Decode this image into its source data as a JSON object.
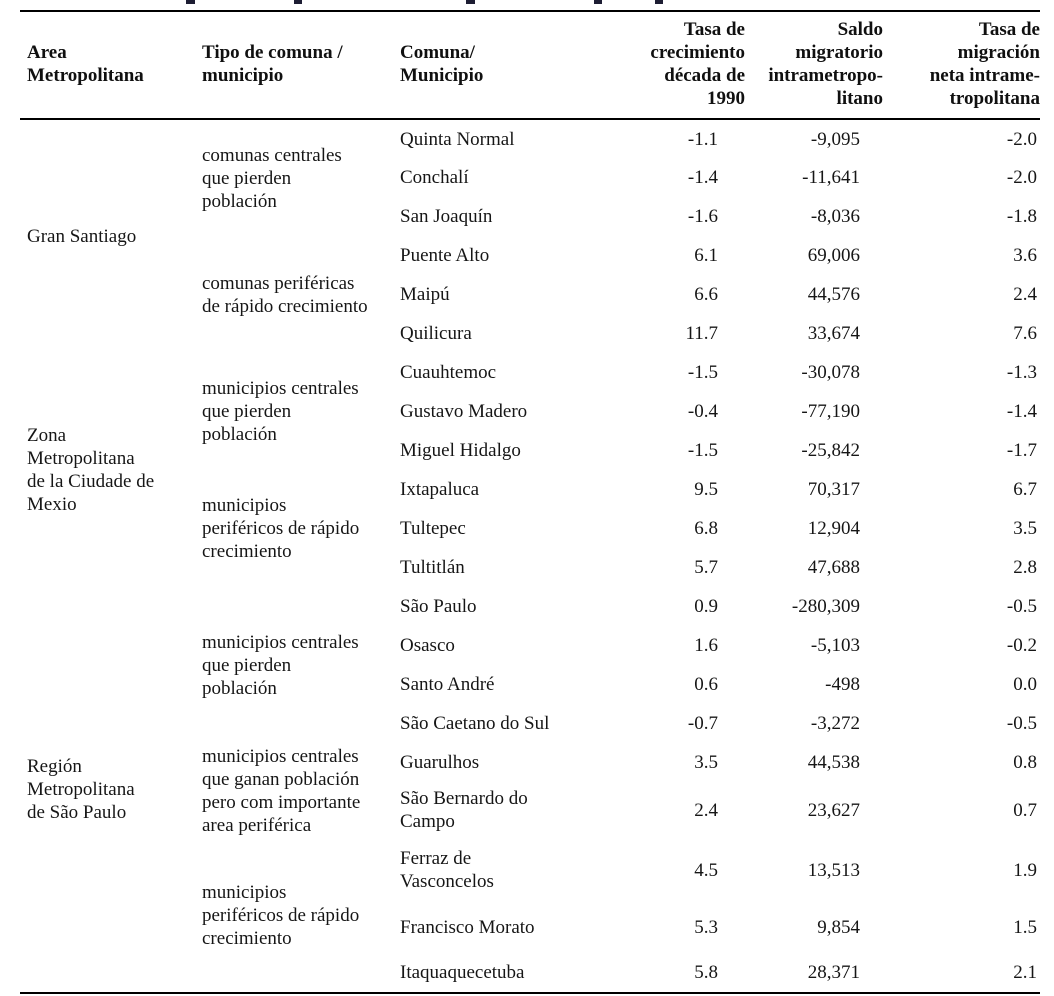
{
  "table": {
    "headers": {
      "area": "Area\nMetropolitana",
      "tipo": "Tipo de comuna /\nmunicipio",
      "comuna": "Comuna/\nMunicipio",
      "tasa": "Tasa de\ncrecimiento\ndécada de\n1990",
      "saldo": "Saldo\nmigratorio\nintrametropo-\nlitano",
      "neta": "Tasa de\nmigración\nneta intrame-\ntropolitana"
    },
    "areas": [
      {
        "label": "Gran Santiago"
      },
      {
        "label": "Zona\nMetropolitana\nde la Ciudade de\nMexio"
      },
      {
        "label": "Región\nMetropolitana\nde São Paulo"
      }
    ],
    "tipos": [
      {
        "label": "comunas centrales\nque pierden\npoblación"
      },
      {
        "label": "comunas periféricas\nde rápido crecimiento"
      },
      {
        "label": "municipios centrales\nque pierden\npoblación"
      },
      {
        "label": "municipios\nperiféricos de rápido\ncrecimiento"
      },
      {
        "label": "municipios centrales\nque pierden\npoblación"
      },
      {
        "label": "municipios centrales\nque ganan población\npero com importante\narea periférica"
      },
      {
        "label": "municipios\nperiféricos de rápido\ncrecimiento"
      }
    ],
    "rows": [
      {
        "comuna": "Quinta Normal",
        "tasa": "-1.1",
        "saldo": "-9,095",
        "neta": "-2.0"
      },
      {
        "comuna": "Conchalí",
        "tasa": "-1.4",
        "saldo": "-11,641",
        "neta": "-2.0"
      },
      {
        "comuna": "San Joaquín",
        "tasa": "-1.6",
        "saldo": "-8,036",
        "neta": "-1.8"
      },
      {
        "comuna": "Puente Alto",
        "tasa": "6.1",
        "saldo": "69,006",
        "neta": "3.6"
      },
      {
        "comuna": "Maipú",
        "tasa": "6.6",
        "saldo": "44,576",
        "neta": "2.4"
      },
      {
        "comuna": "Quilicura",
        "tasa": "11.7",
        "saldo": "33,674",
        "neta": "7.6"
      },
      {
        "comuna": "Cuauhtemoc",
        "tasa": "-1.5",
        "saldo": "-30,078",
        "neta": "-1.3"
      },
      {
        "comuna": "Gustavo Madero",
        "tasa": "-0.4",
        "saldo": "-77,190",
        "neta": "-1.4"
      },
      {
        "comuna": "Miguel Hidalgo",
        "tasa": "-1.5",
        "saldo": "-25,842",
        "neta": "-1.7"
      },
      {
        "comuna": "Ixtapaluca",
        "tasa": "9.5",
        "saldo": "70,317",
        "neta": "6.7"
      },
      {
        "comuna": "Tultepec",
        "tasa": "6.8",
        "saldo": "12,904",
        "neta": "3.5"
      },
      {
        "comuna": "Tultitlán",
        "tasa": "5.7",
        "saldo": "47,688",
        "neta": "2.8"
      },
      {
        "comuna": "São Paulo",
        "tasa": "0.9",
        "saldo": "-280,309",
        "neta": "-0.5"
      },
      {
        "comuna": "Osasco",
        "tasa": "1.6",
        "saldo": "-5,103",
        "neta": "-0.2"
      },
      {
        "comuna": "Santo André",
        "tasa": "0.6",
        "saldo": "-498",
        "neta": "0.0"
      },
      {
        "comuna": "São Caetano do Sul",
        "tasa": "-0.7",
        "saldo": "-3,272",
        "neta": "-0.5"
      },
      {
        "comuna": "Guarulhos",
        "tasa": "3.5",
        "saldo": "44,538",
        "neta": "0.8"
      },
      {
        "comuna": "São Bernardo do\nCampo",
        "tasa": "2.4",
        "saldo": "23,627",
        "neta": "0.7"
      },
      {
        "comuna": "Ferraz de\nVasconcelos",
        "tasa": "4.5",
        "saldo": "13,513",
        "neta": "1.9"
      },
      {
        "comuna": "Francisco Morato",
        "tasa": "5.3",
        "saldo": "9,854",
        "neta": "1.5"
      },
      {
        "comuna": "Itaquaquecetuba",
        "tasa": "5.8",
        "saldo": "28,371",
        "neta": "2.1"
      }
    ]
  }
}
